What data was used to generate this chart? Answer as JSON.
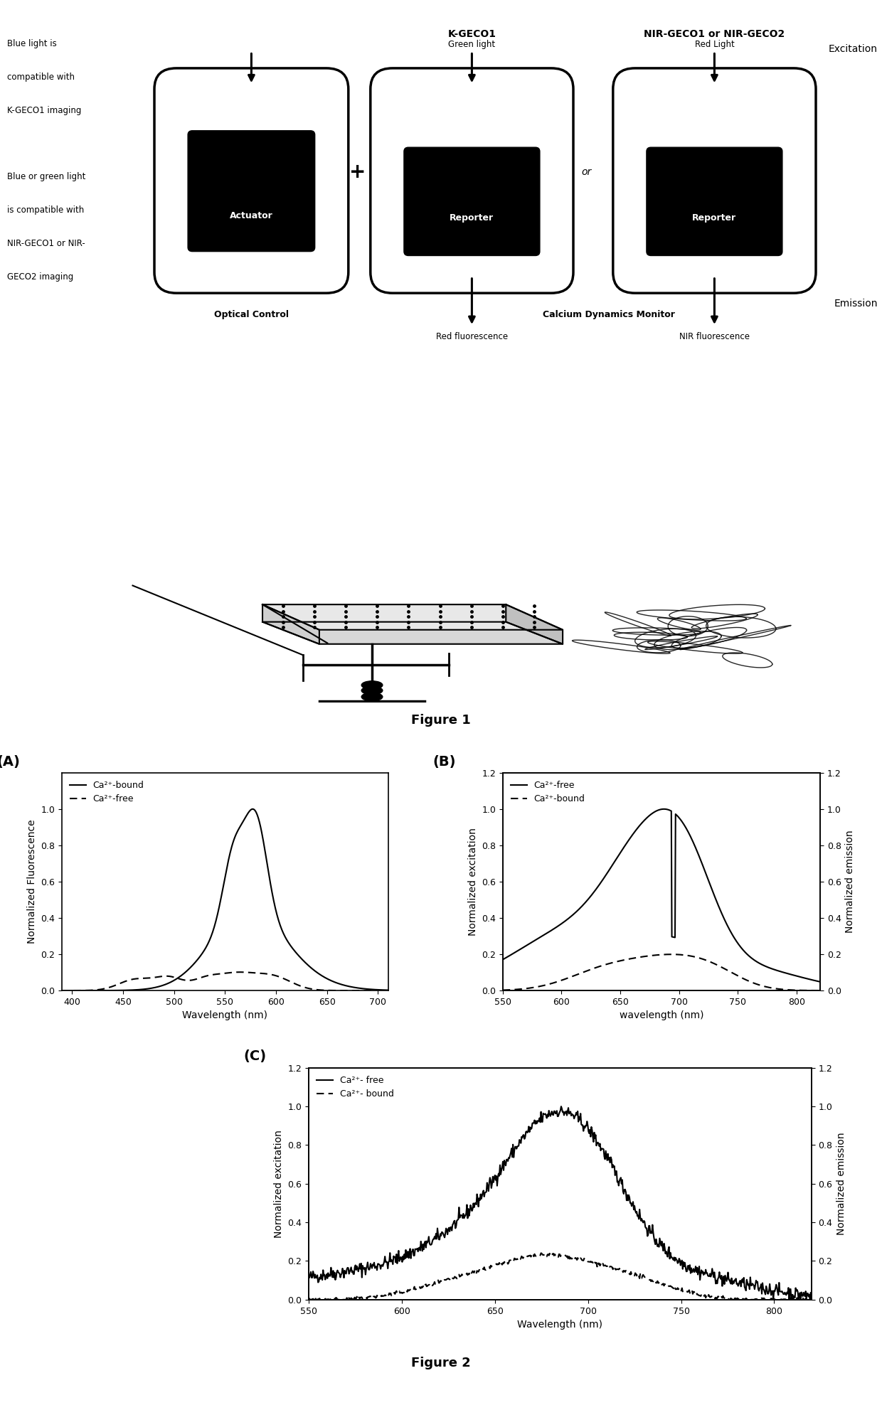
{
  "fig_width": 12.4,
  "fig_height": 19.76,
  "background_color": "#ffffff",
  "fig1_label": "Figure 1",
  "fig2_label": "Figure 2",
  "left_text_lines": [
    "Blue light is",
    "compatible with",
    "K-GECO1 imaging",
    "",
    "Blue or green light",
    "is compatible with",
    "NIR-GECO1 or NIR-",
    "GECO2 imaging"
  ],
  "actuator_label": "Actuator",
  "reporter_label": "Reporter",
  "optical_control_label": "Optical Control",
  "calcium_monitor_label": "Calcium Dynamics Monitor",
  "kgeco1_label": "K-GECO1",
  "nirgeco_label": "NIR-GECO1 or NIR-GECO2",
  "excitation_label": "Excitation",
  "emission_label": "Emission",
  "green_light_label": "Green light",
  "red_light_label": "Red Light",
  "red_fluor_label": "Red fluorescence",
  "nir_fluor_label": "NIR fluorescence",
  "or_label": "or",
  "plus_label": "+",
  "panelA_label": "(A)",
  "panelB_label": "(B)",
  "panelC_label": "(C)",
  "panelA_xlabel": "Wavelength (nm)",
  "panelA_ylabel": "Normalized Fluorescence",
  "panelA_xlim": [
    390,
    710
  ],
  "panelA_ylim": [
    0.0,
    1.2
  ],
  "panelA_xticks": [
    400,
    450,
    500,
    550,
    600,
    650,
    700
  ],
  "panelA_yticks": [
    0.0,
    0.2,
    0.4,
    0.6,
    0.8,
    1.0
  ],
  "panelBC_xlabel": "wavelength (nm)",
  "panelBC_xlim": [
    550,
    820
  ],
  "panelBC_ylim": [
    0.0,
    1.2
  ],
  "panelBC_xticks": [
    550,
    600,
    650,
    700,
    750,
    800
  ],
  "panelBC_yticks": [
    0.0,
    0.2,
    0.4,
    0.6,
    0.8,
    1.0,
    1.2
  ],
  "panelBC_ylabel_left": "Normalized excitation",
  "panelBC_ylabel_right": "Normalized emission",
  "panelC_xlabel": "Wavelength (nm)",
  "panelC_xlim": [
    550,
    820
  ],
  "panelC_ylim": [
    0.0,
    1.2
  ],
  "panelC_xticks": [
    550,
    600,
    650,
    700,
    750,
    800
  ],
  "panelC_yticks": [
    0.0,
    0.2,
    0.4,
    0.6,
    0.8,
    1.0,
    1.2
  ],
  "legend_solid": "Ca²⁺-bound",
  "legend_dashed": "Ca²⁺-free",
  "legend_solid_BC": "Ca²⁺-free",
  "legend_dashed_BC": "Ca²⁺-bound",
  "legend_solid_C": "Ca²⁺- free",
  "legend_dashed_C": "Ca²⁺- bound"
}
